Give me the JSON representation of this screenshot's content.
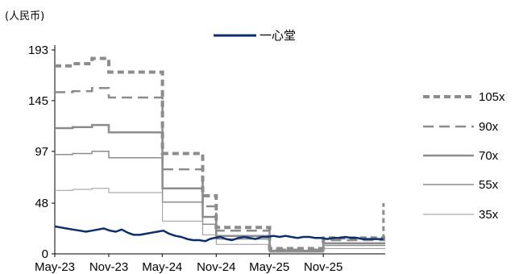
{
  "chart_data": {
    "type": "line",
    "unit_label": "(人民币)",
    "title": "",
    "xlabel": "",
    "ylabel": "",
    "y_ticks": [
      0,
      48,
      97,
      145,
      193
    ],
    "ylim": [
      0,
      193
    ],
    "x_ticks": [
      "May-23",
      "Nov-23",
      "May-24",
      "Nov-24",
      "May-25",
      "Nov-25"
    ],
    "x_tick_dates": [
      "2023-05-01",
      "2023-11-01",
      "2024-05-01",
      "2024-11-01",
      "2025-05-01",
      "2025-11-01"
    ],
    "xlim": [
      "2023-05-01",
      "2026-05-31"
    ],
    "grid": false,
    "legend_position": "right",
    "price_series": {
      "name": "一心堂",
      "color": "#0b2f6b",
      "x": [
        "2023-05-01",
        "2023-05-20",
        "2023-06-10",
        "2023-07-01",
        "2023-07-25",
        "2023-08-15",
        "2023-09-05",
        "2023-09-25",
        "2023-10-15",
        "2023-11-05",
        "2023-11-25",
        "2023-12-15",
        "2024-01-05",
        "2024-01-25",
        "2024-02-15",
        "2024-03-05",
        "2024-03-25",
        "2024-04-15",
        "2024-05-05",
        "2024-05-25",
        "2024-06-15",
        "2024-07-05",
        "2024-07-25",
        "2024-08-15",
        "2024-09-05",
        "2024-09-25",
        "2024-10-10",
        "2024-10-25",
        "2024-11-15",
        "2024-12-05",
        "2024-12-25",
        "2025-01-15",
        "2025-02-05",
        "2025-02-25",
        "2025-03-15",
        "2025-04-05",
        "2025-04-25",
        "2025-05-15",
        "2025-06-05",
        "2025-06-25",
        "2025-07-15",
        "2025-08-05",
        "2025-08-25",
        "2025-09-15",
        "2025-10-05",
        "2025-10-25",
        "2025-11-15",
        "2025-12-05",
        "2025-12-25",
        "2026-01-15",
        "2026-02-05",
        "2026-02-25",
        "2026-03-15",
        "2026-04-05",
        "2026-04-25",
        "2026-05-25"
      ],
      "values": [
        26,
        25,
        24,
        23,
        22,
        21,
        22,
        23,
        24,
        22,
        21,
        23,
        20,
        18,
        18,
        19,
        20,
        21,
        22,
        19,
        17,
        16,
        14,
        13,
        13,
        12,
        14,
        15,
        16,
        14,
        13,
        15,
        16,
        15,
        14,
        16,
        16,
        17,
        16,
        17,
        16,
        15,
        16,
        16,
        15,
        15,
        14,
        15,
        15,
        16,
        15,
        15,
        14,
        14,
        14,
        14
      ]
    },
    "band_series": [
      {
        "name": "105x",
        "color": "#8c8c8c",
        "dash": "8,5",
        "width": 4,
        "x": [
          "2023-05-01",
          "2023-07-01",
          "2023-09-05",
          "2023-11-01",
          "2024-05-01",
          "2024-05-02",
          "2024-09-15",
          "2024-09-16",
          "2024-11-01",
          "2025-05-01",
          "2025-05-02",
          "2025-11-01",
          "2026-05-31"
        ],
        "values": [
          178,
          180,
          185,
          172,
          172,
          95,
          95,
          55,
          25,
          25,
          5,
          15,
          15
        ]
      },
      {
        "name": "90x",
        "color": "#8c8c8c",
        "dash": "13,7",
        "width": 2.5,
        "x": [
          "2023-05-01",
          "2023-07-01",
          "2023-09-05",
          "2023-11-01",
          "2024-05-01",
          "2024-05-02",
          "2024-09-15",
          "2024-09-16",
          "2024-11-01",
          "2025-05-01",
          "2025-05-02",
          "2025-11-01",
          "2026-05-31"
        ],
        "values": [
          153,
          154,
          157,
          148,
          148,
          80,
          80,
          45,
          22,
          22,
          4,
          13,
          13
        ]
      },
      {
        "name": "70x",
        "color": "#8c8c8c",
        "dash": "",
        "width": 2.5,
        "x": [
          "2023-05-01",
          "2023-07-01",
          "2023-09-05",
          "2023-11-01",
          "2024-05-01",
          "2024-05-02",
          "2024-09-15",
          "2024-09-16",
          "2024-11-01",
          "2025-05-01",
          "2025-05-02",
          "2025-11-01",
          "2026-05-31"
        ],
        "values": [
          119,
          120,
          122,
          115,
          115,
          62,
          62,
          35,
          17,
          17,
          3,
          10,
          10
        ]
      },
      {
        "name": "55x",
        "color": "#8c8c8c",
        "dash": "",
        "width": 1.5,
        "x": [
          "2023-05-01",
          "2023-07-01",
          "2023-09-05",
          "2023-11-01",
          "2024-05-01",
          "2024-05-02",
          "2024-09-15",
          "2024-09-16",
          "2024-11-01",
          "2025-05-01",
          "2025-05-02",
          "2025-11-01",
          "2026-05-31"
        ],
        "values": [
          94,
          95,
          97,
          91,
          91,
          49,
          49,
          28,
          14,
          14,
          2.5,
          8,
          8
        ]
      },
      {
        "name": "35x",
        "color": "#9a9a9a",
        "dash": "",
        "width": 1,
        "x": [
          "2023-05-01",
          "2023-07-01",
          "2023-09-05",
          "2023-11-01",
          "2024-05-01",
          "2024-05-02",
          "2024-09-15",
          "2024-09-16",
          "2024-11-01",
          "2025-05-01",
          "2025-05-02",
          "2025-11-01",
          "2026-05-31"
        ],
        "values": [
          60,
          61,
          62,
          58,
          58,
          31,
          31,
          18,
          9,
          9,
          1.5,
          5,
          5
        ]
      }
    ]
  }
}
